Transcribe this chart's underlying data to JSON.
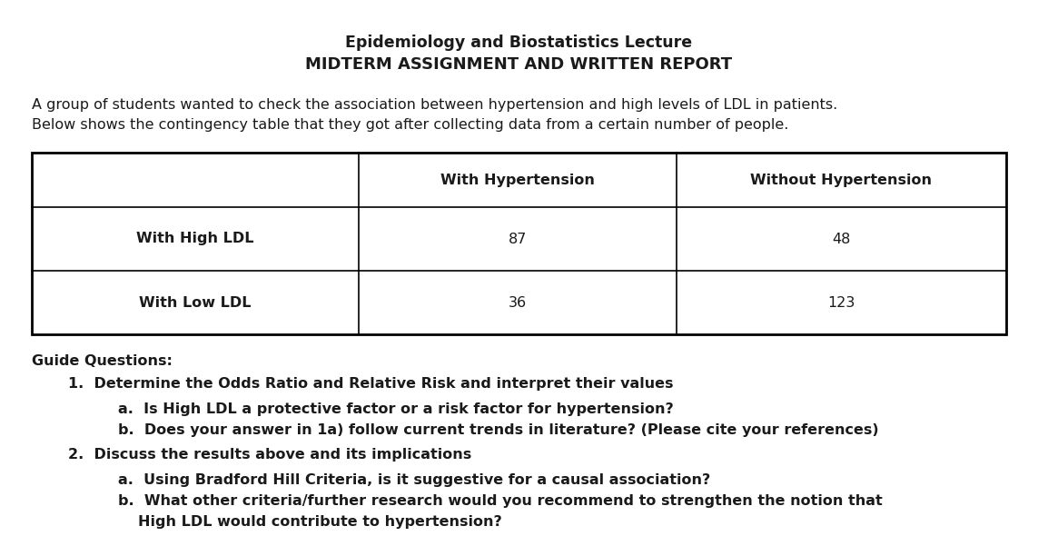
{
  "title_line1": "Epidemiology and Biostatistics Lecture",
  "title_line2": "MIDTERM ASSIGNMENT AND WRITTEN REPORT",
  "intro_line1": "A group of students wanted to check the association between hypertension and high levels of LDL in patients.",
  "intro_line2": "Below shows the contingency table that they got after collecting data from a certain number of people.",
  "table": {
    "col_headers": [
      "",
      "With Hypertension",
      "Without Hypertension"
    ],
    "rows": [
      [
        "With High LDL",
        "87",
        "48"
      ],
      [
        "With Low LDL",
        "36",
        "123"
      ]
    ]
  },
  "guide_questions_label": "Guide Questions:",
  "questions": [
    {
      "num": "1.",
      "text": "Determine the Odds Ratio and Relative Risk and interpret their values",
      "sub": [
        {
          "letter": "a.",
          "text": "Is High LDL a protective factor or a risk factor for hypertension?"
        },
        {
          "letter": "b.",
          "text": "Does your answer in 1a) follow current trends in literature? (Please cite your references)"
        }
      ]
    },
    {
      "num": "2.",
      "text": "Discuss the results above and its implications",
      "sub": [
        {
          "letter": "a.",
          "text": "Using Bradford Hill Criteria, is it suggestive for a causal association?"
        },
        {
          "letter": "b.",
          "text": "What other criteria/further research would you recommend to strengthen the notion that"
        },
        {
          "letter": "",
          "text": "High LDL would contribute to hypertension?"
        }
      ]
    }
  ],
  "bg_color": "#ffffff",
  "text_color": "#1a1a1a",
  "font_family": "DejaVu Sans",
  "title_fontsize": 12.5,
  "body_fontsize": 11.5,
  "table_fontsize": 11.5,
  "fig_width": 11.43,
  "fig_height": 6.01,
  "dpi": 100
}
